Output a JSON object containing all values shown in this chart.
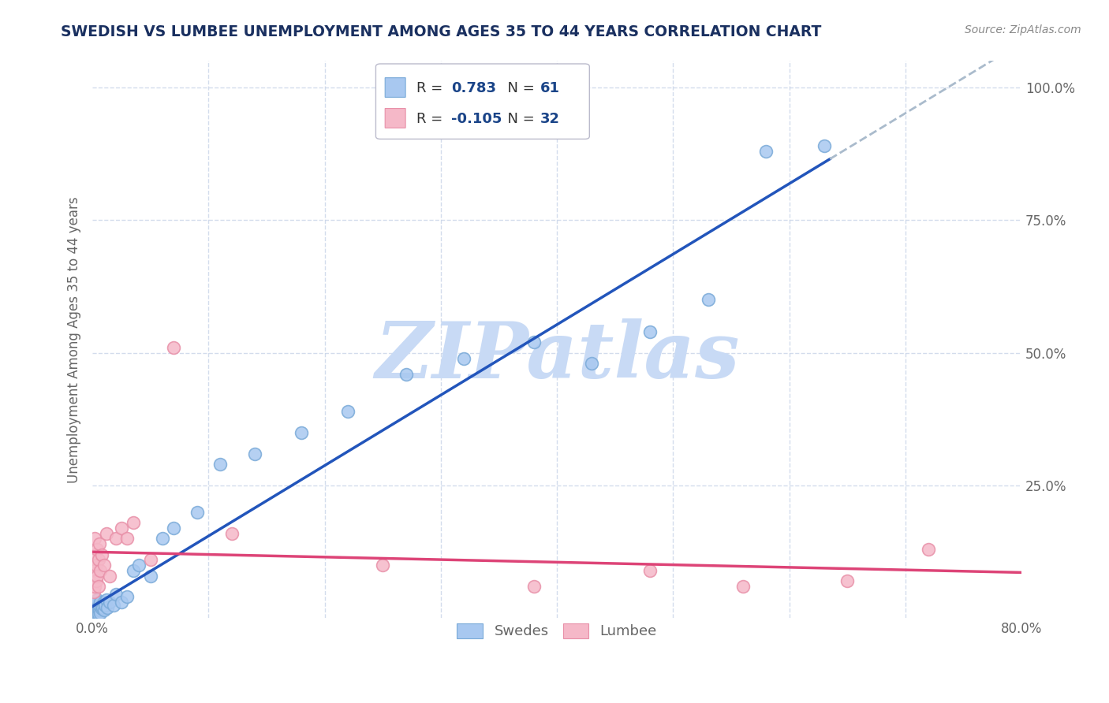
{
  "title": "SWEDISH VS LUMBEE UNEMPLOYMENT AMONG AGES 35 TO 44 YEARS CORRELATION CHART",
  "source_text": "Source: ZipAtlas.com",
  "ylabel": "Unemployment Among Ages 35 to 44 years",
  "xlim": [
    0.0,
    0.8
  ],
  "ylim": [
    0.0,
    1.05
  ],
  "blue_color": "#a8c8f0",
  "blue_edge_color": "#7aaad8",
  "pink_color": "#f5b8c8",
  "pink_edge_color": "#e890a8",
  "blue_line_color": "#2255bb",
  "pink_line_color": "#dd4477",
  "dash_line_color": "#aabbcc",
  "watermark": "ZIPatlas",
  "watermark_color": "#c8daf5",
  "grid_color": "#c8d4e8",
  "background_color": "#ffffff",
  "title_color": "#1a3060",
  "source_color": "#888888",
  "tick_color": "#666666",
  "ylabel_color": "#666666",
  "legend_text_color": "#1a4488",
  "legend_r2_color": "#dd4477",
  "swedes_x": [
    0.001,
    0.001,
    0.001,
    0.001,
    0.001,
    0.002,
    0.002,
    0.002,
    0.002,
    0.002,
    0.002,
    0.003,
    0.003,
    0.003,
    0.003,
    0.003,
    0.003,
    0.004,
    0.004,
    0.004,
    0.004,
    0.004,
    0.005,
    0.005,
    0.005,
    0.006,
    0.006,
    0.006,
    0.007,
    0.007,
    0.008,
    0.008,
    0.009,
    0.01,
    0.01,
    0.011,
    0.012,
    0.013,
    0.015,
    0.018,
    0.02,
    0.025,
    0.03,
    0.035,
    0.04,
    0.05,
    0.06,
    0.07,
    0.09,
    0.11,
    0.14,
    0.18,
    0.22,
    0.27,
    0.32,
    0.38,
    0.43,
    0.48,
    0.53,
    0.58,
    0.63
  ],
  "swedes_y": [
    0.01,
    0.015,
    0.02,
    0.025,
    0.005,
    0.015,
    0.02,
    0.01,
    0.03,
    0.008,
    0.025,
    0.012,
    0.018,
    0.022,
    0.008,
    0.03,
    0.005,
    0.015,
    0.025,
    0.01,
    0.02,
    0.035,
    0.012,
    0.018,
    0.008,
    0.02,
    0.015,
    0.025,
    0.03,
    0.01,
    0.018,
    0.025,
    0.02,
    0.015,
    0.03,
    0.025,
    0.035,
    0.02,
    0.03,
    0.025,
    0.045,
    0.03,
    0.04,
    0.09,
    0.1,
    0.08,
    0.15,
    0.17,
    0.2,
    0.29,
    0.31,
    0.35,
    0.39,
    0.46,
    0.49,
    0.52,
    0.48,
    0.54,
    0.6,
    0.88,
    0.89
  ],
  "lumbee_x": [
    0.001,
    0.001,
    0.001,
    0.002,
    0.002,
    0.002,
    0.002,
    0.003,
    0.003,
    0.004,
    0.004,
    0.005,
    0.005,
    0.006,
    0.007,
    0.008,
    0.01,
    0.012,
    0.015,
    0.02,
    0.025,
    0.03,
    0.035,
    0.05,
    0.07,
    0.12,
    0.25,
    0.38,
    0.48,
    0.56,
    0.65,
    0.72
  ],
  "lumbee_y": [
    0.05,
    0.08,
    0.1,
    0.06,
    0.09,
    0.12,
    0.15,
    0.07,
    0.1,
    0.08,
    0.13,
    0.06,
    0.11,
    0.14,
    0.09,
    0.12,
    0.1,
    0.16,
    0.08,
    0.15,
    0.17,
    0.15,
    0.18,
    0.11,
    0.51,
    0.16,
    0.1,
    0.06,
    0.09,
    0.06,
    0.07,
    0.13
  ],
  "blue_line_x_solid_end": 0.635,
  "blue_line_x_dash_start": 0.635,
  "blue_line_x_dash_end": 0.8
}
